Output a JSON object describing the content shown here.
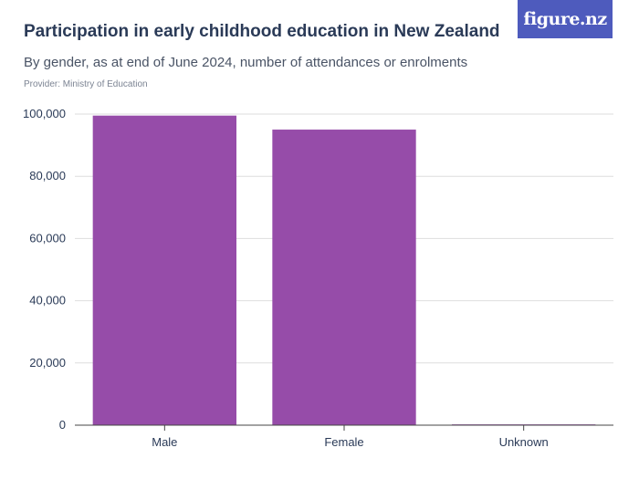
{
  "header": {
    "title": "Participation in early childhood education in New Zealand",
    "subtitle": "By gender, as at end of June 2024, number of attendances or enrolments",
    "provider": "Provider: Ministry of Education",
    "brand": "figure.nz"
  },
  "colors": {
    "bar": "#964ca9",
    "brand_bg": "#4e5bbd",
    "grid": "#dedede",
    "axis": "#444444",
    "text": "#2a3a57"
  },
  "chart_data": {
    "type": "bar",
    "title": "Participation in early childhood education in New Zealand",
    "subtitle": "By gender, as at end of June 2024, number of attendances or enrolments",
    "categories": [
      "Male",
      "Female",
      "Unknown"
    ],
    "values": [
      99500,
      95000,
      250
    ],
    "ylim": [
      0,
      100000
    ],
    "yticks": [
      0,
      20000,
      40000,
      60000,
      80000,
      100000
    ],
    "ytick_labels": [
      "0",
      "20,000",
      "40,000",
      "60,000",
      "80,000",
      "100,000"
    ],
    "grid": true
  }
}
